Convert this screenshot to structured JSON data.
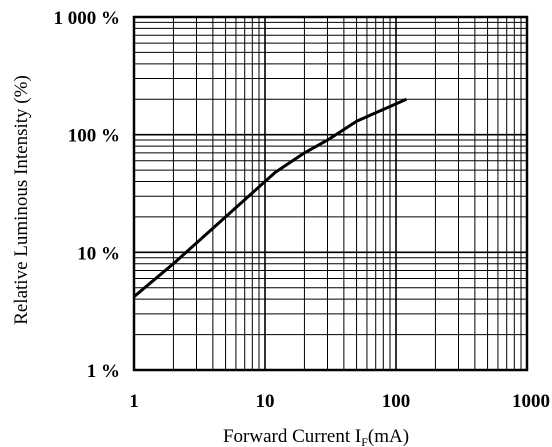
{
  "chart_data": {
    "type": "line",
    "title": "",
    "xlabel": "Forward Current  I",
    "xlabel_sub": "F",
    "xlabel_unit": "(mA)",
    "ylabel": "Relative Luminous Intensity  (%)",
    "x_scale": "log",
    "y_scale": "log",
    "xlim": [
      1,
      1000
    ],
    "ylim": [
      1,
      1000
    ],
    "x_ticks": [
      {
        "value": 1,
        "label": "1"
      },
      {
        "value": 10,
        "label": "10"
      },
      {
        "value": 100,
        "label": "100"
      },
      {
        "value": 1000,
        "label": "1000"
      }
    ],
    "y_ticks": [
      {
        "value": 1,
        "label": "1 %"
      },
      {
        "value": 10,
        "label": "10 %"
      },
      {
        "value": 100,
        "label": "100 %"
      },
      {
        "value": 1000,
        "label": "1 000 %"
      }
    ],
    "grid": true,
    "series": [
      {
        "x": [
          1,
          2,
          5,
          10,
          12,
          20,
          30,
          50,
          120
        ],
        "y": [
          4.2,
          8,
          20,
          40,
          48,
          70,
          90,
          130,
          200
        ]
      }
    ]
  }
}
